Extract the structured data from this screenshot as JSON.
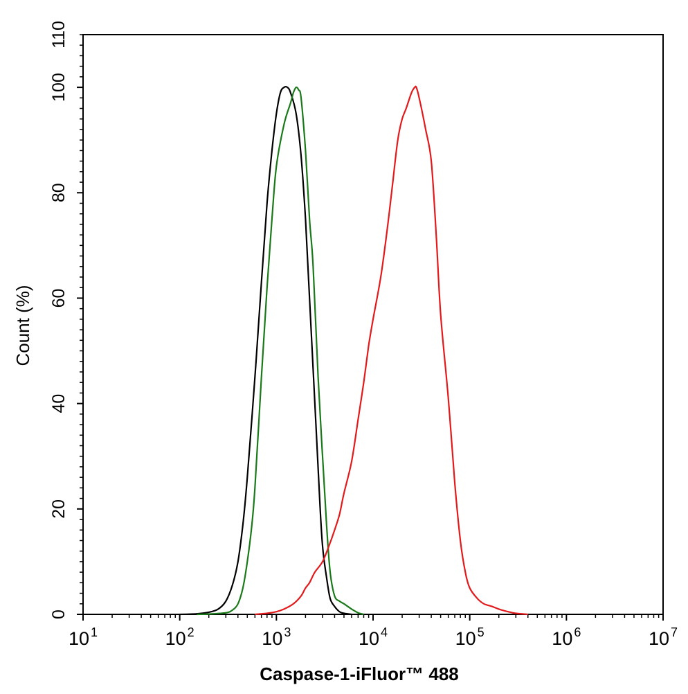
{
  "chart_data": {
    "type": "line",
    "xlabel": "Caspase-1-iFluor™ 488",
    "ylabel": "Count  (%)",
    "x_scale": "log",
    "xlim": [
      10,
      10000000
    ],
    "ylim": [
      0,
      110
    ],
    "x_ticks": [
      {
        "base": "10",
        "exp": "1"
      },
      {
        "base": "10",
        "exp": "2"
      },
      {
        "base": "10",
        "exp": "3"
      },
      {
        "base": "10",
        "exp": "4"
      },
      {
        "base": "10",
        "exp": "5"
      },
      {
        "base": "10",
        "exp": "6"
      },
      {
        "base": "10",
        "exp": "7"
      }
    ],
    "y_ticks": [
      "0",
      "20",
      "40",
      "60",
      "80",
      "100",
      "110"
    ],
    "grid": false,
    "legend": "none",
    "series": [
      {
        "color": "#000000",
        "x": [
          100,
          150,
          200,
          250,
          300,
          350,
          400,
          450,
          500,
          600,
          700,
          800,
          900,
          1000,
          1100,
          1200,
          1300,
          1400,
          1600,
          1800,
          2000,
          2200,
          2500,
          2800,
          3000,
          3300,
          3600,
          4000,
          4500,
          5000,
          6000
        ],
        "y": [
          0,
          0.1,
          0.4,
          1,
          2.5,
          5.5,
          10,
          17,
          26,
          45,
          63,
          78,
          88,
          95,
          99,
          100,
          100,
          99,
          95,
          87,
          75,
          60,
          40,
          22,
          13,
          7,
          3,
          1.5,
          0.5,
          0.2,
          0
        ]
      },
      {
        "color": "#1a7a1a",
        "x": [
          150,
          200,
          300,
          350,
          400,
          450,
          500,
          550,
          600,
          700,
          800,
          900,
          1000,
          1200,
          1400,
          1500,
          1600,
          1700,
          1800,
          2000,
          2200,
          2400,
          2700,
          3000,
          3300,
          3600,
          4000,
          4500,
          5000,
          6000,
          7000,
          8000
        ],
        "y": [
          0,
          0.05,
          0.3,
          0.8,
          2,
          5,
          10,
          16,
          24,
          45,
          62,
          75,
          85,
          93,
          97,
          99,
          100,
          99.5,
          98,
          88,
          75,
          66,
          45,
          30,
          17,
          8,
          3.5,
          2.5,
          2,
          1,
          0.3,
          0
        ]
      },
      {
        "color": "#e31a1c",
        "x": [
          600,
          800,
          1000,
          1200,
          1500,
          1800,
          2000,
          2200,
          2500,
          3000,
          3500,
          4000,
          4500,
          5000,
          6000,
          7000,
          8000,
          9000,
          10000,
          12000,
          14000,
          16000,
          18000,
          20000,
          22000,
          25000,
          27000,
          28000,
          30000,
          35000,
          40000,
          45000,
          50000,
          60000,
          70000,
          80000,
          90000,
          100000,
          120000,
          140000,
          170000,
          200000,
          250000,
          300000,
          400000
        ],
        "y": [
          0,
          0.2,
          0.5,
          1,
          2,
          3.5,
          5,
          6,
          8,
          10,
          13,
          16,
          19,
          23,
          29,
          37,
          44,
          51,
          56,
          64,
          73,
          82,
          90,
          94,
          96,
          99,
          100,
          100,
          98,
          92,
          86,
          72,
          57,
          41,
          25,
          14,
          8,
          5,
          3,
          2,
          1.5,
          1,
          0.5,
          0.2,
          0
        ]
      }
    ]
  }
}
